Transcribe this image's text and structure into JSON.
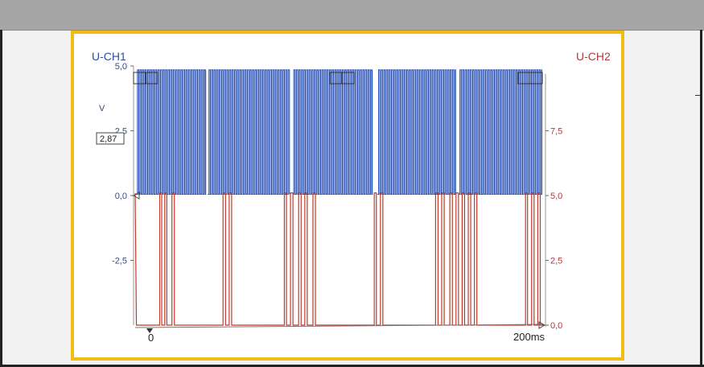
{
  "window": {
    "background_color": "#f1f1f1",
    "header_color": "#a6a6a6",
    "frame_color": "#f2bd12"
  },
  "chart_data": {
    "type": "line",
    "title": "",
    "xlabel": "",
    "x_start_label": "0",
    "x_end_label": "200ms",
    "x_range_ms": [
      0,
      200
    ],
    "cursor_value_label": "2,87",
    "left_axis": {
      "label": "U-CH1",
      "unit": "V",
      "ticks": [
        "5,0",
        "2,5",
        "0,0",
        "-2,5"
      ],
      "tick_values": [
        5.0,
        2.5,
        0.0,
        -2.5
      ],
      "range": [
        -5.0,
        5.0
      ],
      "color": "#2a4ea8"
    },
    "right_axis": {
      "label": "U-CH2",
      "ticks": [
        "7,5",
        "5,0",
        "2,5",
        "0,0"
      ],
      "tick_values": [
        7.5,
        5.0,
        2.5,
        0.0
      ],
      "range": [
        0.0,
        10.0
      ],
      "color": "#b23a3a"
    },
    "series": [
      {
        "name": "U-CH1",
        "color": "#2a52b5",
        "high": 4.85,
        "low": 0.05,
        "segments_ms": [
          [
            0.5,
            34.5
          ],
          [
            35.5,
            75.5
          ],
          [
            77,
            116
          ],
          [
            118.5,
            156.8
          ],
          [
            158.3,
            199
          ]
        ],
        "period_ms": 1.25
      },
      {
        "name": "U-CH2",
        "color": "#c0392b",
        "high": 5.1,
        "low": 0.0,
        "pulses_ms": [
          [
            12,
            13
          ],
          [
            14.5,
            15.5
          ],
          [
            18,
            19.2
          ],
          [
            43,
            44.2
          ],
          [
            46,
            47.2
          ],
          [
            73,
            74
          ],
          [
            76,
            77.2
          ],
          [
            80,
            81.2
          ],
          [
            83,
            84.2
          ],
          [
            87,
            88.2
          ],
          [
            117,
            118
          ],
          [
            120,
            121.2
          ],
          [
            147,
            148.2
          ],
          [
            150,
            151.2
          ],
          [
            154,
            155.2
          ],
          [
            157,
            158.2
          ],
          [
            160,
            161.2
          ],
          [
            163,
            164.2
          ],
          [
            166,
            167.2
          ],
          [
            191,
            192
          ],
          [
            194,
            195.2
          ],
          [
            197,
            198.2
          ]
        ]
      }
    ]
  }
}
